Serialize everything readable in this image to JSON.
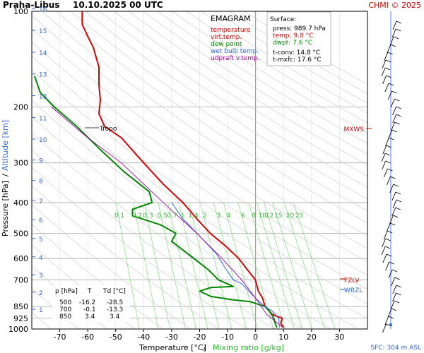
{
  "header": {
    "station": "Praha-Libus",
    "datetime": "10.10.2025 00 UTC",
    "credit": "CHMI © 2025"
  },
  "legend": {
    "title": "EMAGRAM",
    "items": [
      {
        "label": "temperature",
        "color": "#dd0000"
      },
      {
        "label": "virt.temp.",
        "color": "#dd0000"
      },
      {
        "label": "dew point",
        "color": "#008800"
      },
      {
        "label": "wet bulb temp.",
        "color": "#3366dd"
      },
      {
        "label": "udpraft v.temp.",
        "color": "#aa00aa"
      }
    ]
  },
  "surface_box": {
    "title": "Surface:",
    "lines": [
      {
        "text": "press: 989.7 hPa",
        "color": "#000000"
      },
      {
        "text": "temp: 9.8 °C",
        "color": "#dd0000"
      },
      {
        "text": "dwpt: 7.6 °C",
        "color": "#008800"
      },
      {
        "text": "t-conv: 14.8 °C",
        "color": "#000000"
      },
      {
        "text": "t-mxfc: 17.6 °C",
        "color": "#000000"
      }
    ]
  },
  "level_table": {
    "header": [
      "p [hPa]",
      "T",
      "Td [°C]"
    ],
    "rows": [
      [
        "500",
        "-16.2",
        "-28.5"
      ],
      [
        "700",
        "-0.1",
        "-13.3"
      ],
      [
        "850",
        "3.4",
        "3.4"
      ]
    ]
  },
  "chart_data": {
    "type": "line",
    "title": "Praha-Libus 10.10.2025 00 UTC",
    "xlabel": "Temperature [°C]",
    "xlabel2": "Mixing ratio [g/kg]",
    "ylabel": "Pressure [hPa]",
    "ylabel2": "Altitude [km]",
    "y_log_scale": true,
    "xlim": [
      -80,
      40
    ],
    "ylim": [
      1000,
      100
    ],
    "x_ticks": [
      "-70",
      "-60",
      "-50",
      "-40",
      "-30",
      "-20",
      "-10",
      "0",
      "10",
      "20",
      "30"
    ],
    "p_ticks": [
      100,
      200,
      300,
      400,
      500,
      600,
      700,
      850,
      925,
      1000
    ],
    "km_ticks": [
      "1",
      "2",
      "3",
      "4",
      "5",
      "6",
      "7",
      "8",
      "9",
      "10",
      "11",
      "12",
      "13",
      "14",
      "15",
      "16"
    ],
    "mixing_ratio_labels": [
      "0.1",
      "0.2",
      "0.3",
      "0.5",
      "0.7",
      "1",
      "1.4",
      "2",
      "3",
      "4",
      "6",
      "8",
      "10",
      "12",
      "15",
      "20",
      "25"
    ],
    "series": [
      {
        "name": "temperature",
        "color": "#dd0000",
        "points": [
          [
            10,
            990
          ],
          [
            9,
            960
          ],
          [
            9.5,
            925
          ],
          [
            6,
            900
          ],
          [
            3.4,
            850
          ],
          [
            2.5,
            800
          ],
          [
            1,
            760
          ],
          [
            -0.1,
            700
          ],
          [
            -3,
            650
          ],
          [
            -6,
            600
          ],
          [
            -10.5,
            550
          ],
          [
            -16.2,
            500
          ],
          [
            -21,
            450
          ],
          [
            -26,
            400
          ],
          [
            -33,
            350
          ],
          [
            -40,
            300
          ],
          [
            -48,
            250
          ],
          [
            -54,
            230
          ],
          [
            -56,
            210
          ],
          [
            -55.5,
            190
          ],
          [
            -56,
            170
          ],
          [
            -56,
            150
          ],
          [
            -58,
            130
          ],
          [
            -60,
            120
          ],
          [
            -62,
            110
          ],
          [
            -62,
            100
          ]
        ]
      },
      {
        "name": "dew point",
        "color": "#008800",
        "points": [
          [
            7.6,
            990
          ],
          [
            7,
            960
          ],
          [
            6.5,
            925
          ],
          [
            5,
            880
          ],
          [
            3.4,
            850
          ],
          [
            -2,
            820
          ],
          [
            -8,
            810
          ],
          [
            -16,
            790
          ],
          [
            -20,
            760
          ],
          [
            -16,
            740
          ],
          [
            -8,
            735
          ],
          [
            -13.3,
            700
          ],
          [
            -17,
            650
          ],
          [
            -22,
            600
          ],
          [
            -30,
            530
          ],
          [
            -28.5,
            500
          ],
          [
            -34,
            470
          ],
          [
            -44,
            440
          ],
          [
            -44,
            420
          ],
          [
            -37,
            400
          ],
          [
            -38,
            370
          ],
          [
            -47,
            320
          ],
          [
            -56,
            270
          ],
          [
            -64,
            230
          ],
          [
            -72,
            200
          ],
          [
            -77,
            180
          ],
          [
            -79,
            160
          ]
        ]
      },
      {
        "name": "wet bulb temp.",
        "color": "#3366dd",
        "points": [
          [
            8.5,
            990
          ],
          [
            8.3,
            925
          ],
          [
            6,
            880
          ],
          [
            3.4,
            850
          ],
          [
            0,
            800
          ],
          [
            -5,
            720
          ],
          [
            -8,
            700
          ],
          [
            -11,
            640
          ],
          [
            -14,
            580
          ],
          [
            -20,
            510
          ],
          [
            -26,
            450
          ],
          [
            -30,
            400
          ]
        ]
      },
      {
        "name": "udpraft v.temp.",
        "color": "#aa00aa",
        "points": [
          [
            9.8,
            990
          ],
          [
            4,
            900
          ],
          [
            0,
            800
          ],
          [
            -5,
            700
          ],
          [
            -12,
            600
          ],
          [
            -21,
            500
          ],
          [
            -33,
            400
          ],
          [
            -48,
            300
          ],
          [
            -60,
            250
          ],
          [
            -73,
            200
          ]
        ]
      }
    ],
    "annotations": [
      {
        "label": "Tropo",
        "p": 230
      },
      {
        "label": "MXWS",
        "p": 230,
        "color": "#dd0000"
      },
      {
        "label": "FZLV",
        "p": 700,
        "color": "#dd0000"
      },
      {
        "label": "WBZL",
        "p": 740,
        "color": "#3366dd"
      },
      {
        "label": "SFC: 304 m ASL",
        "color": "#3366dd"
      }
    ]
  }
}
